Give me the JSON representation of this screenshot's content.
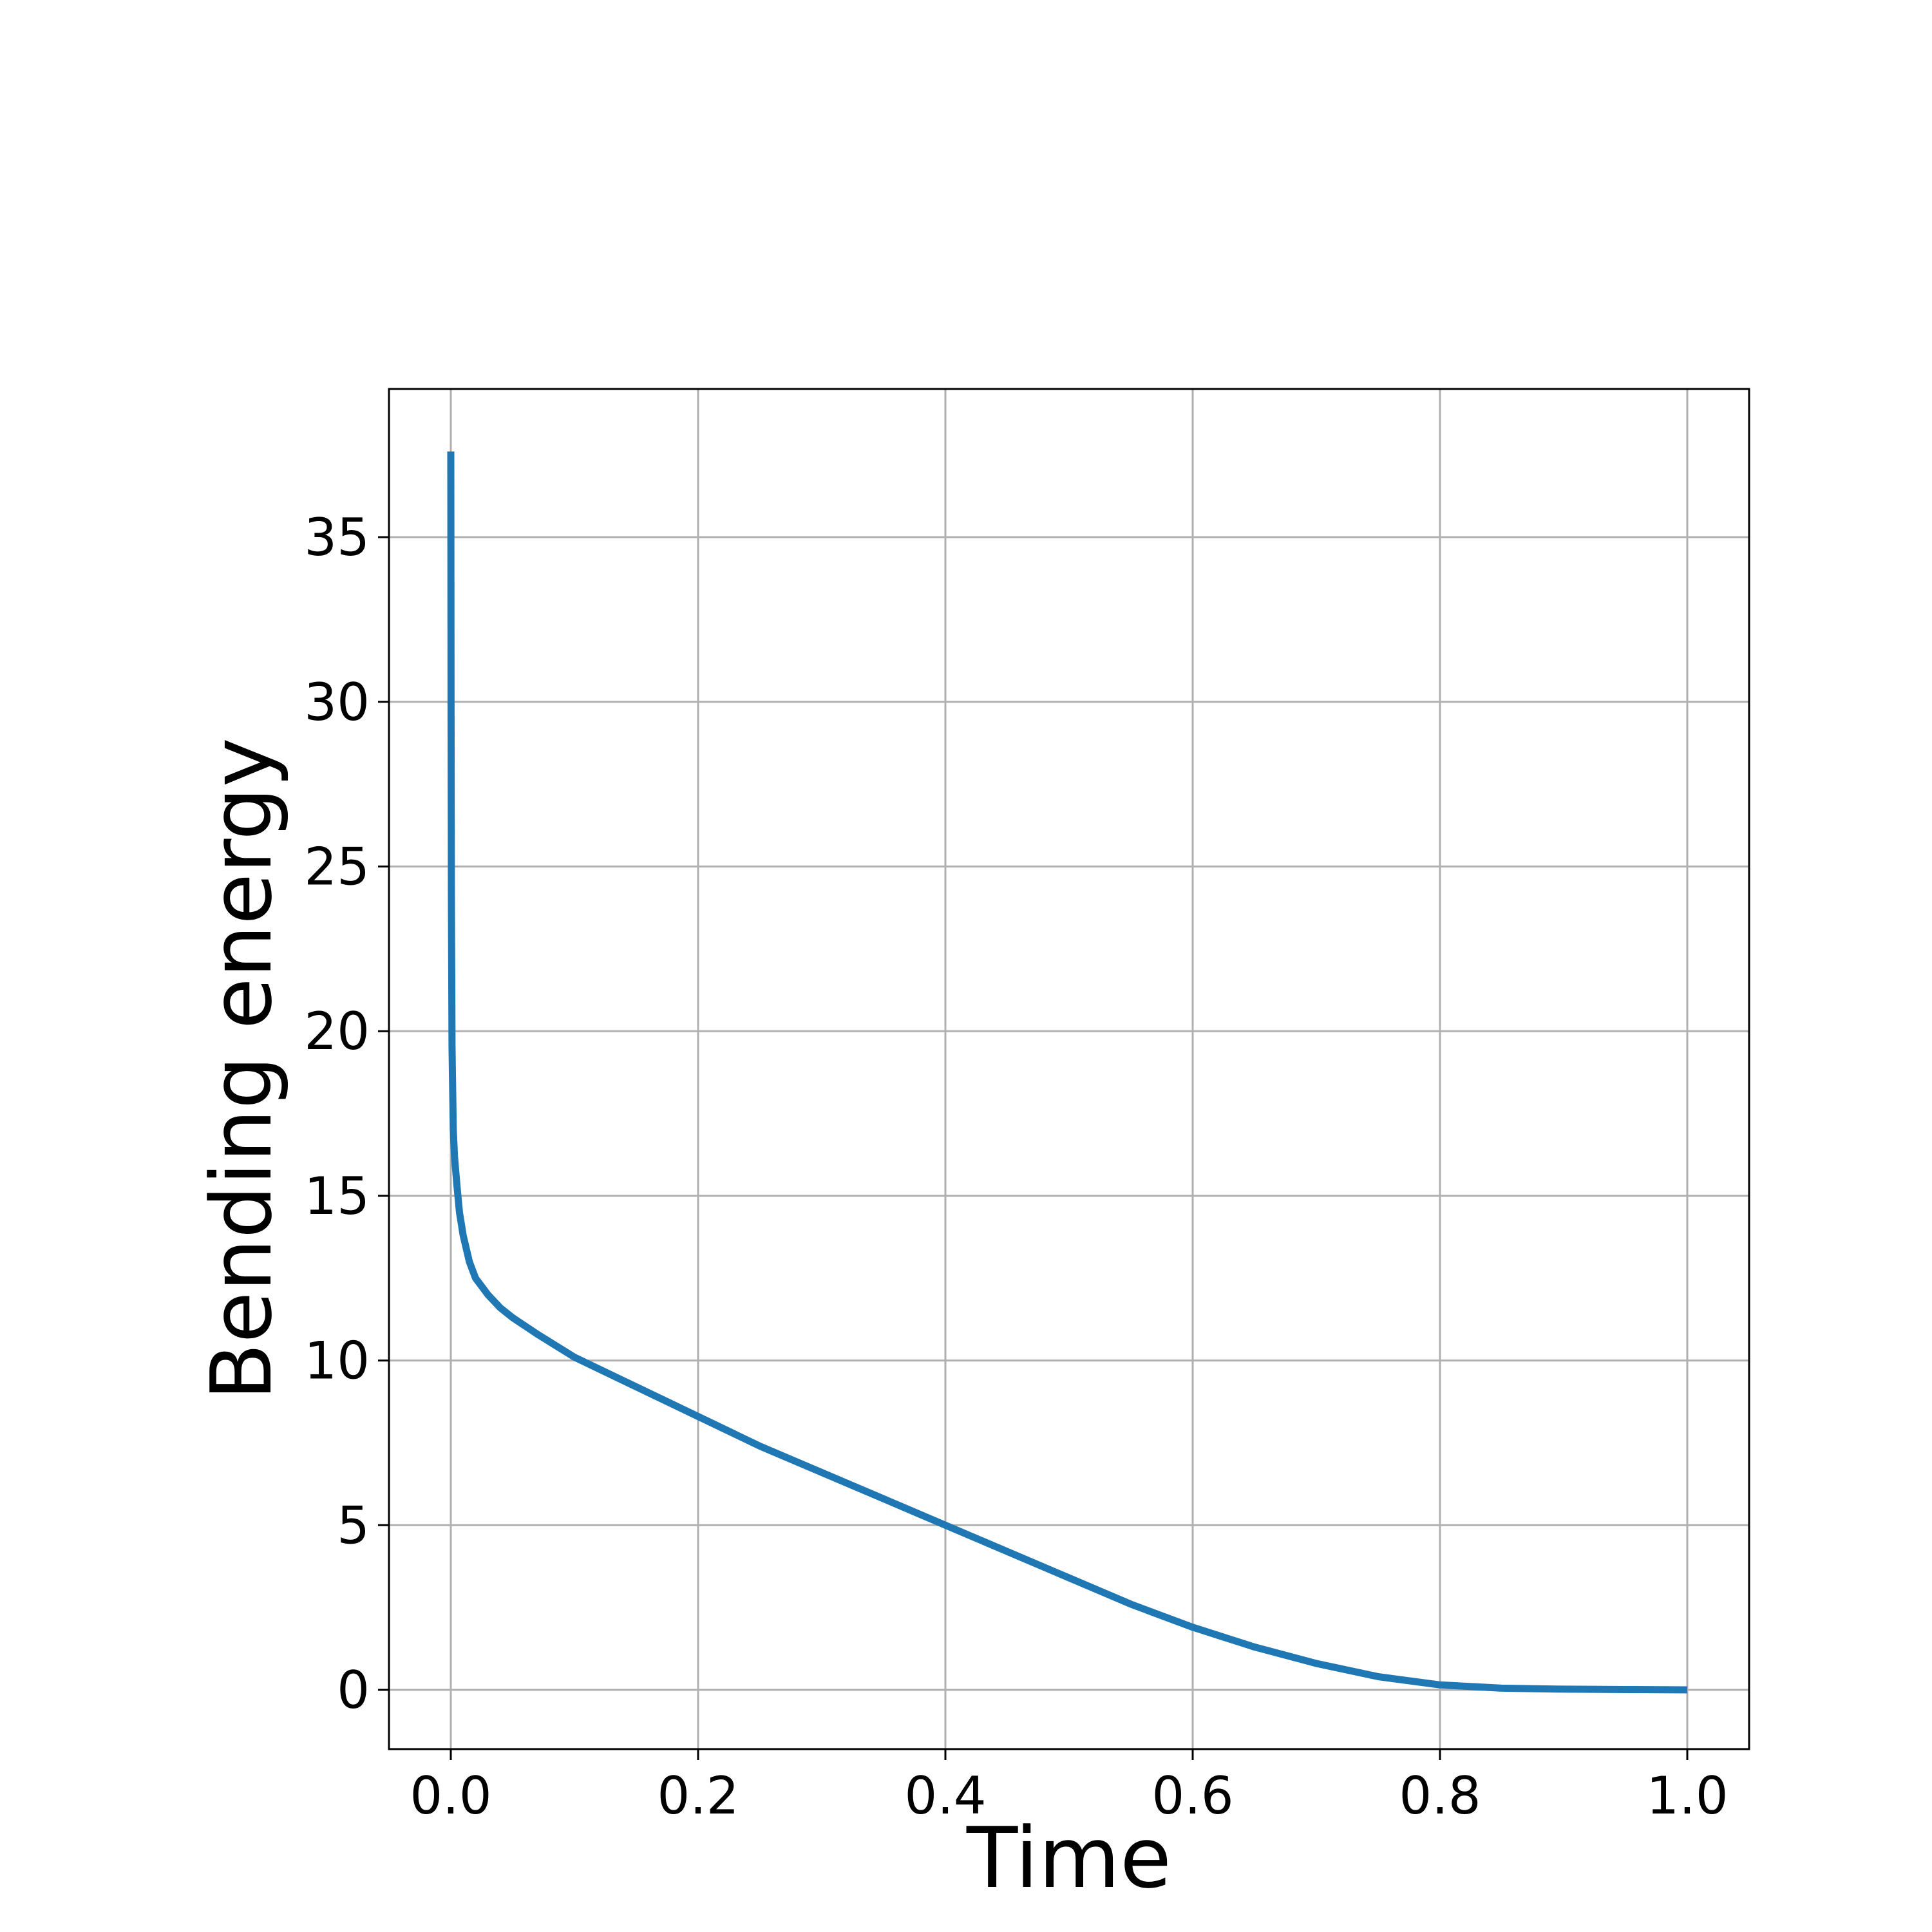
{
  "chart_data": {
    "type": "line",
    "title": "",
    "xlabel": "Time",
    "ylabel": "Bending energy",
    "xlim": [
      -0.05,
      1.05
    ],
    "ylim": [
      -1.8,
      39.5
    ],
    "xticks": [
      0.0,
      0.2,
      0.4,
      0.6,
      0.8,
      1.0
    ],
    "xtick_labels": [
      "0.0",
      "0.2",
      "0.4",
      "0.6",
      "0.8",
      "1.0"
    ],
    "yticks": [
      0,
      5,
      10,
      15,
      20,
      25,
      30,
      35
    ],
    "ytick_labels": [
      "0",
      "5",
      "10",
      "15",
      "20",
      "25",
      "30",
      "35"
    ],
    "grid": true,
    "legend": "none",
    "series": [
      {
        "color": "#1f77b4",
        "x": [
          0.0,
          0.0002,
          0.0005,
          0.001,
          0.002,
          0.003,
          0.005,
          0.007,
          0.01,
          0.015,
          0.02,
          0.03,
          0.04,
          0.05,
          0.07,
          0.1,
          0.15,
          0.2,
          0.25,
          0.3,
          0.35,
          0.4,
          0.45,
          0.5,
          0.55,
          0.6,
          0.65,
          0.7,
          0.75,
          0.8,
          0.85,
          0.9,
          0.95,
          1.0
        ],
        "y": [
          37.6,
          30.0,
          24.0,
          19.5,
          17.0,
          16.2,
          15.3,
          14.5,
          13.8,
          13.0,
          12.5,
          12.0,
          11.6,
          11.3,
          10.8,
          10.1,
          9.2,
          8.3,
          7.4,
          6.6,
          5.8,
          5.0,
          4.2,
          3.4,
          2.6,
          1.9,
          1.3,
          0.8,
          0.4,
          0.15,
          0.05,
          0.02,
          0.01,
          0.0
        ]
      }
    ]
  }
}
